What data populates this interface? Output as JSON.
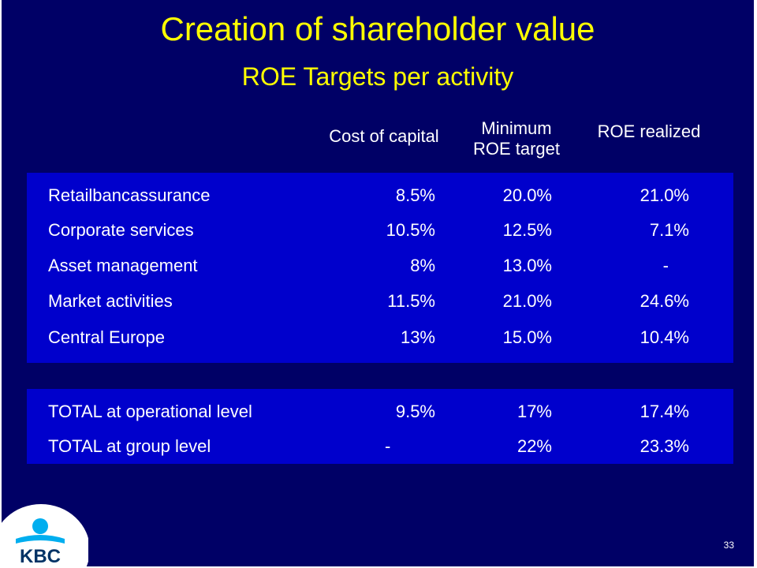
{
  "title": "Creation of shareholder value",
  "subtitle": "ROE Targets per activity",
  "columns": {
    "cost_of_capital": "Cost of capital",
    "min_roe_line1": "Minimum",
    "min_roe_line2": "ROE target",
    "roe_realized": "ROE realized"
  },
  "rows": [
    {
      "label": "Retailbancassurance",
      "cost": "8.5%",
      "min": "20.0%",
      "realized": "21.0%"
    },
    {
      "label": "Corporate services",
      "cost": "10.5%",
      "min": "12.5%",
      "realized": "7.1%"
    },
    {
      "label": "Asset management",
      "cost": "8%",
      "min": "13.0%",
      "realized": "-"
    },
    {
      "label": "Market activities",
      "cost": "11.5%",
      "min": "21.0%",
      "realized": "24.6%"
    },
    {
      "label": "Central Europe",
      "cost": "13%",
      "min": "15.0%",
      "realized": "10.4%"
    }
  ],
  "totals": [
    {
      "label": "TOTAL at operational level",
      "cost": "9.5%",
      "min": "17%",
      "realized": "17.4%"
    },
    {
      "label": "TOTAL at group level",
      "cost": "-",
      "min": "22%",
      "realized": "23.3%"
    }
  ],
  "logo_text": "KBC",
  "page_number": "33",
  "colors": {
    "background": "#000066",
    "table": "#0000cc",
    "title": "#ffff00",
    "logo_blue": "#00aeef",
    "logo_navy": "#003366"
  }
}
